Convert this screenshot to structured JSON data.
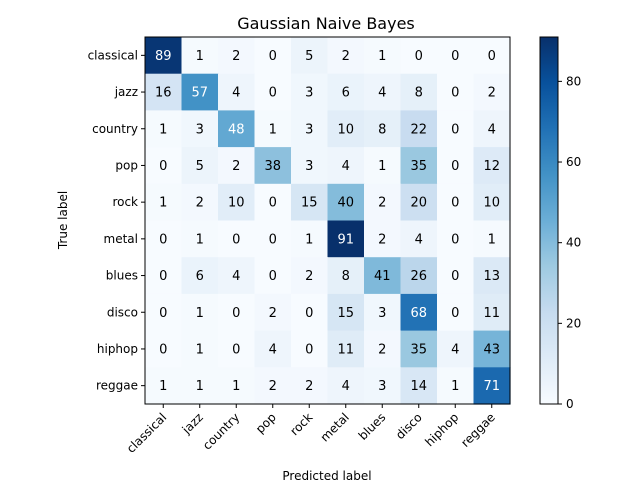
{
  "chart_data": {
    "type": "heatmap",
    "title": "Gaussian Naive Bayes",
    "xlabel": "Predicted label",
    "ylabel": "True label",
    "rows": [
      "classical",
      "jazz",
      "country",
      "pop",
      "rock",
      "metal",
      "blues",
      "disco",
      "hiphop",
      "reggae"
    ],
    "cols": [
      "classical",
      "jazz",
      "country",
      "pop",
      "rock",
      "metal",
      "blues",
      "disco",
      "hiphop",
      "reggae"
    ],
    "values": [
      [
        89,
        1,
        2,
        0,
        5,
        2,
        1,
        0,
        0,
        0
      ],
      [
        16,
        57,
        4,
        0,
        3,
        6,
        4,
        8,
        0,
        2
      ],
      [
        1,
        3,
        48,
        1,
        3,
        10,
        8,
        22,
        0,
        4
      ],
      [
        0,
        5,
        2,
        38,
        3,
        4,
        1,
        35,
        0,
        12
      ],
      [
        1,
        2,
        10,
        0,
        15,
        40,
        2,
        20,
        0,
        10
      ],
      [
        0,
        1,
        0,
        0,
        1,
        91,
        2,
        4,
        0,
        1
      ],
      [
        0,
        6,
        4,
        0,
        2,
        8,
        41,
        26,
        0,
        13
      ],
      [
        0,
        1,
        0,
        2,
        0,
        15,
        3,
        68,
        0,
        11
      ],
      [
        0,
        1,
        0,
        4,
        0,
        11,
        2,
        35,
        4,
        43
      ],
      [
        1,
        1,
        1,
        2,
        2,
        4,
        3,
        14,
        1,
        71
      ]
    ],
    "colormap": "Blues",
    "colorbar": {
      "min": 0,
      "max": 91,
      "ticks": [
        0,
        20,
        40,
        60,
        80
      ]
    }
  }
}
